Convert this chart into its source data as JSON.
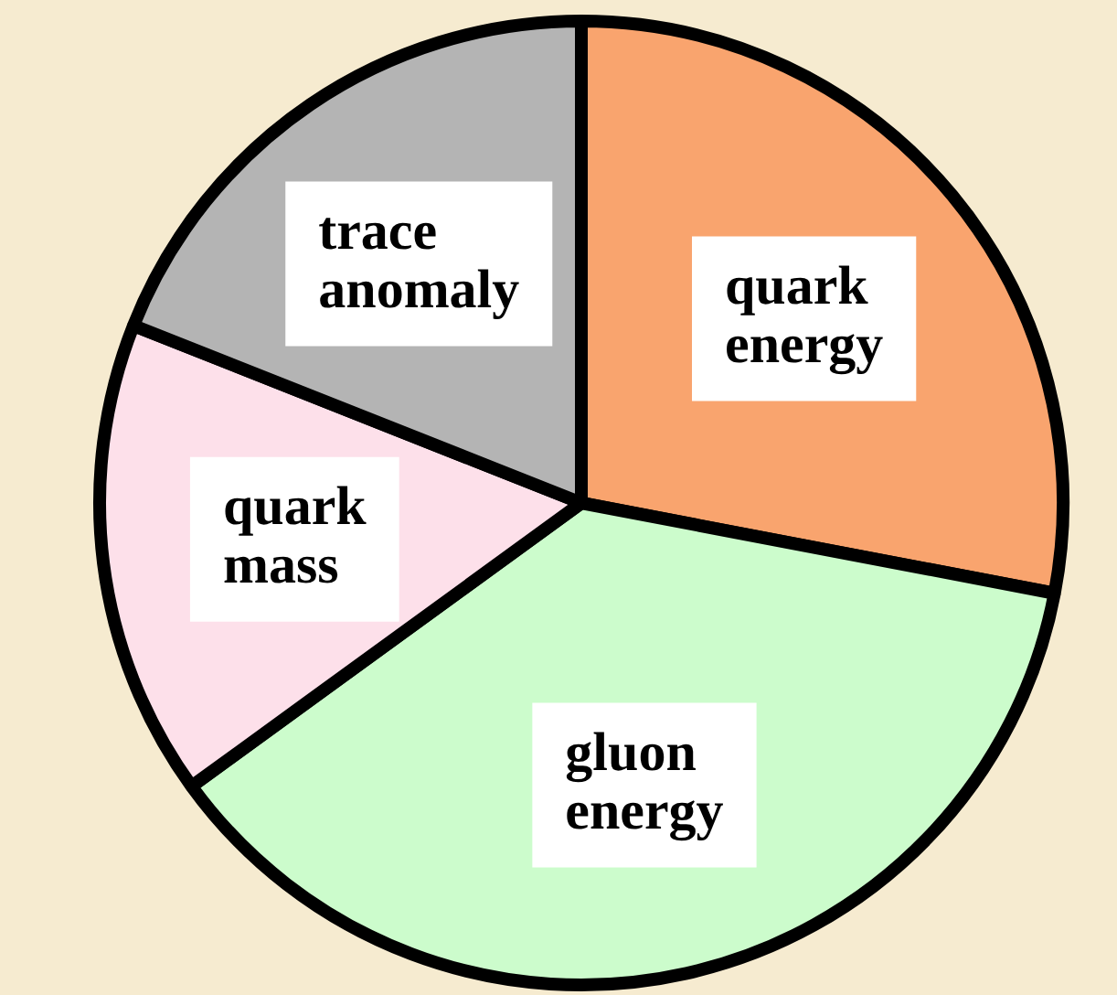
{
  "chart_data": {
    "type": "pie",
    "categories": [
      "quark energy",
      "gluon energy",
      "quark mass",
      "trace anomaly"
    ],
    "values": [
      28,
      37,
      16,
      19
    ],
    "colors": [
      "#f9a46e",
      "#ccfccc",
      "#fde0ea",
      "#b4b4b4"
    ],
    "legend": false
  }
}
